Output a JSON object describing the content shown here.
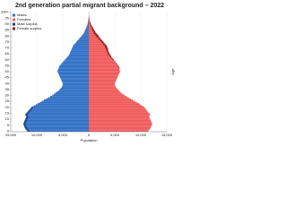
{
  "chart_data": {
    "type": "pyramid",
    "title": "2nd generation partial migrant background – 2022",
    "x_label": "Population",
    "y_label": "Age",
    "y": [
      0,
      1,
      2,
      3,
      4,
      5,
      6,
      7,
      8,
      9,
      10,
      11,
      12,
      13,
      14,
      15,
      16,
      17,
      18,
      19,
      20,
      21,
      22,
      23,
      24,
      25,
      26,
      27,
      28,
      29,
      30,
      31,
      32,
      33,
      34,
      35,
      36,
      37,
      38,
      39,
      40,
      41,
      42,
      43,
      44,
      45,
      46,
      47,
      48,
      49,
      50,
      51,
      52,
      53,
      54,
      55,
      56,
      57,
      58,
      59,
      60,
      61,
      62,
      63,
      64,
      65,
      66,
      67,
      68,
      69,
      70,
      71,
      72,
      73,
      74,
      75,
      76,
      77,
      78,
      79,
      80,
      81,
      82,
      83,
      84,
      85,
      86,
      87,
      88,
      89,
      90,
      91,
      92,
      93,
      94,
      95,
      96,
      97,
      98,
      99,
      100
    ],
    "series": [
      {
        "name": "Males",
        "color": "#2f6fc6",
        "values": [
          -11800,
          -12000,
          -12200,
          -12300,
          -12400,
          -12500,
          -12600,
          -12500,
          -12400,
          -12300,
          -12200,
          -12100,
          -12000,
          -12100,
          -12200,
          -12000,
          -11800,
          -11600,
          -11400,
          -11200,
          -11000,
          -10600,
          -10200,
          -9800,
          -9400,
          -9000,
          -8600,
          -8200,
          -7800,
          -7400,
          -7000,
          -6700,
          -6400,
          -6100,
          -5800,
          -5600,
          -5400,
          -5200,
          -5100,
          -5000,
          -5000,
          -5100,
          -5200,
          -5300,
          -5400,
          -5500,
          -5600,
          -5700,
          -5800,
          -5900,
          -6000,
          -6000,
          -5900,
          -5800,
          -5700,
          -5600,
          -5400,
          -5200,
          -5000,
          -4800,
          -4600,
          -4400,
          -4200,
          -4000,
          -3800,
          -3700,
          -3600,
          -3500,
          -3400,
          -3300,
          -3200,
          -3100,
          -3000,
          -2800,
          -2600,
          -2400,
          -2200,
          -2000,
          -1800,
          -1600,
          -1400,
          -1200,
          -1000,
          -900,
          -800,
          -700,
          -600,
          -500,
          -400,
          -300,
          -250,
          -200,
          -150,
          -100,
          -70,
          -50,
          -30,
          -20,
          -10,
          -5,
          -5
        ]
      },
      {
        "name": "Females",
        "color": "#f05a5a",
        "values": [
          11400,
          11600,
          11800,
          11900,
          12000,
          12100,
          12200,
          12100,
          12000,
          11900,
          11800,
          11700,
          11600,
          11700,
          11800,
          11600,
          11400,
          11200,
          11000,
          10900,
          10700,
          10400,
          10000,
          9700,
          9300,
          8900,
          8500,
          8100,
          7700,
          7300,
          6900,
          6600,
          6300,
          6000,
          5800,
          5600,
          5400,
          5200,
          5100,
          5000,
          5000,
          5100,
          5200,
          5300,
          5400,
          5500,
          5600,
          5700,
          5800,
          5900,
          6000,
          6000,
          5900,
          5900,
          5800,
          5700,
          5500,
          5300,
          5100,
          4900,
          4800,
          4600,
          4400,
          4300,
          4100,
          4000,
          3900,
          3800,
          3700,
          3700,
          3600,
          3500,
          3400,
          3200,
          3000,
          2800,
          2600,
          2400,
          2200,
          2000,
          1900,
          1700,
          1500,
          1300,
          1200,
          1000,
          900,
          800,
          650,
          500,
          400,
          320,
          250,
          180,
          120,
          90,
          60,
          40,
          25,
          15,
          15
        ]
      }
    ],
    "surplus": [
      {
        "name": "Male surplus",
        "color": "#1c3f82"
      },
      {
        "name": "Female surplus",
        "color": "#8e1f1f"
      }
    ],
    "xlim": [
      -15000,
      15000
    ],
    "xticks": [
      {
        "value": -15000,
        "label": "15,000"
      },
      {
        "value": -10000,
        "label": "10,000"
      },
      {
        "value": -5000,
        "label": "5,000"
      },
      0,
      {
        "value": 5000,
        "label": "5,000"
      },
      {
        "value": 10000,
        "label": "10,000"
      },
      {
        "value": 15000,
        "label": "15,000"
      }
    ],
    "ylim": [
      0,
      101
    ],
    "yticks": [
      0,
      5,
      10,
      15,
      20,
      25,
      30,
      35,
      40,
      45,
      50,
      55,
      60,
      65,
      70,
      75,
      80,
      85,
      90,
      95,
      {
        "value": 100,
        "label": "100+"
      }
    ],
    "grid": true
  }
}
